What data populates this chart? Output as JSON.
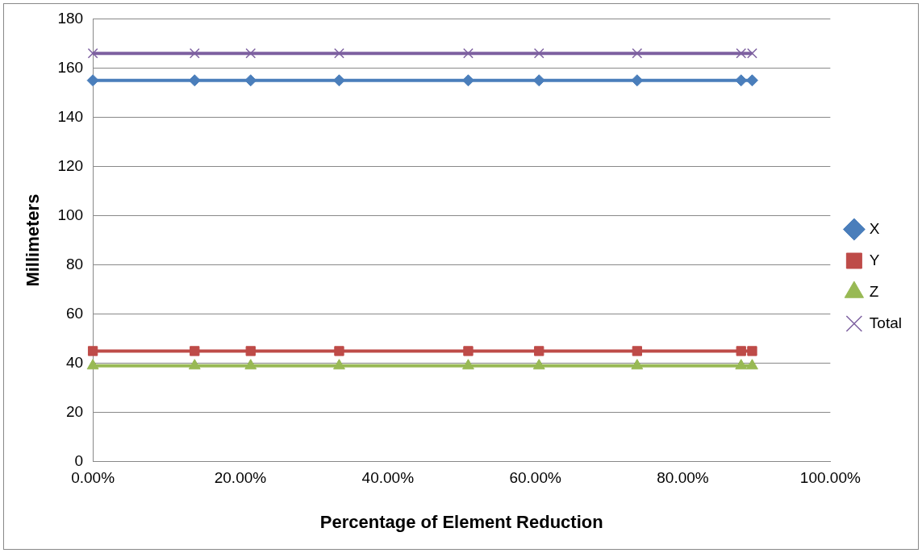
{
  "chart_data": {
    "type": "line",
    "xlabel": "Percentage of Element Reduction",
    "ylabel": "Millimeters",
    "x": [
      0,
      13.8,
      21.4,
      33.4,
      50.9,
      60.5,
      73.8,
      87.9,
      89.4
    ],
    "series": [
      {
        "name": "X",
        "color": "#4a7ebb",
        "marker": "diamond",
        "values": [
          155,
          155,
          155,
          155,
          155,
          155,
          155,
          155,
          155
        ]
      },
      {
        "name": "Y",
        "color": "#be4b48",
        "marker": "square",
        "values": [
          45,
          45,
          45,
          45,
          45,
          45,
          45,
          45,
          45
        ]
      },
      {
        "name": "Z",
        "color": "#98b954",
        "marker": "triangle",
        "values": [
          39,
          39,
          39,
          39,
          39,
          39,
          39,
          39,
          39
        ]
      },
      {
        "name": "Total",
        "color": "#7d60a0",
        "marker": "cross",
        "values": [
          166,
          166,
          166,
          166,
          166,
          166,
          166,
          166,
          166
        ]
      }
    ],
    "xlim": [
      0,
      100
    ],
    "xticks": [
      {
        "value": 0,
        "label": "0.00%"
      },
      {
        "value": 20,
        "label": "20.00%"
      },
      {
        "value": 40,
        "label": "40.00%"
      },
      {
        "value": 60,
        "label": "60.00%"
      },
      {
        "value": 80,
        "label": "80.00%"
      },
      {
        "value": 100,
        "label": "100.00%"
      }
    ],
    "ylim": [
      0,
      180
    ],
    "yticks": [
      0,
      20,
      40,
      60,
      80,
      100,
      120,
      140,
      160,
      180
    ],
    "grid": "y",
    "legend": "right",
    "line_style": "solid"
  }
}
